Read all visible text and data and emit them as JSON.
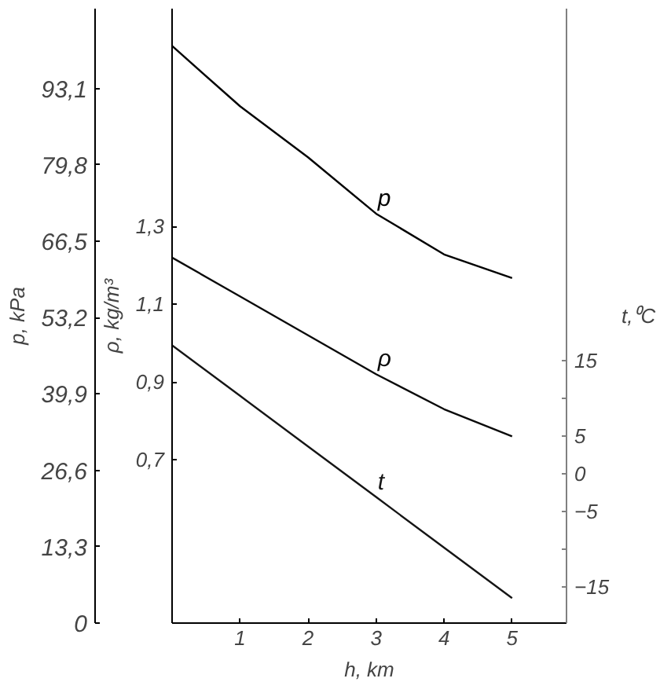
{
  "chart_data": {
    "type": "line",
    "xlabel": "h, km",
    "ylabel": "p, kPa",
    "y3label": "ρ, kg/m³",
    "y2label": "t,⁰C",
    "x": [
      0,
      1,
      2,
      3,
      4,
      5
    ],
    "series": [
      {
        "name": "p",
        "color": "#000000",
        "values": [
          100.5,
          90,
          81.1,
          71.3,
          64.2,
          60.1
        ]
      },
      {
        "name": "ρ",
        "color": "#0a0a0a",
        "axis": "y3",
        "values": [
          1.22,
          1.12,
          1.02,
          0.92,
          0.83,
          0.76
        ]
      },
      {
        "name": "t",
        "color": "#151515",
        "axis": "y2",
        "values": [
          17,
          10.3,
          3.6,
          -3.1,
          -9.8,
          -16.5
        ]
      }
    ],
    "xlim": [
      0,
      5.8
    ],
    "xticks": [
      1,
      2,
      3,
      4,
      5
    ],
    "ylim": [
      0,
      107
    ],
    "yticks": [
      0,
      {
        "value": 13.3,
        "label": "13,3"
      },
      {
        "value": 26.6,
        "label": "26,6"
      },
      {
        "value": 39.9,
        "label": "39,9"
      },
      {
        "value": 53.2,
        "label": "53,2"
      },
      {
        "value": 66.5,
        "label": "66,5"
      },
      {
        "value": 79.8,
        "label": "79,8"
      },
      {
        "value": 93.1,
        "label": "93,1"
      }
    ],
    "y3lim": [
      0.28,
      1.86
    ],
    "y3ticks": [
      {
        "value": 0.7,
        "label": "0,7"
      },
      {
        "value": 0.9,
        "label": "0,9"
      },
      {
        "value": 1.1,
        "label": "1,1"
      },
      {
        "value": 1.3,
        "label": "1,3"
      }
    ],
    "y2lim": [
      -19.8,
      61.6
    ],
    "y2ticks": [
      -15,
      {
        "value": -10,
        "label": null
      },
      -5,
      0,
      5,
      {
        "value": 10,
        "label": null
      },
      15
    ],
    "grid": false,
    "marker": "none",
    "line_style": "solid",
    "legend": false
  }
}
